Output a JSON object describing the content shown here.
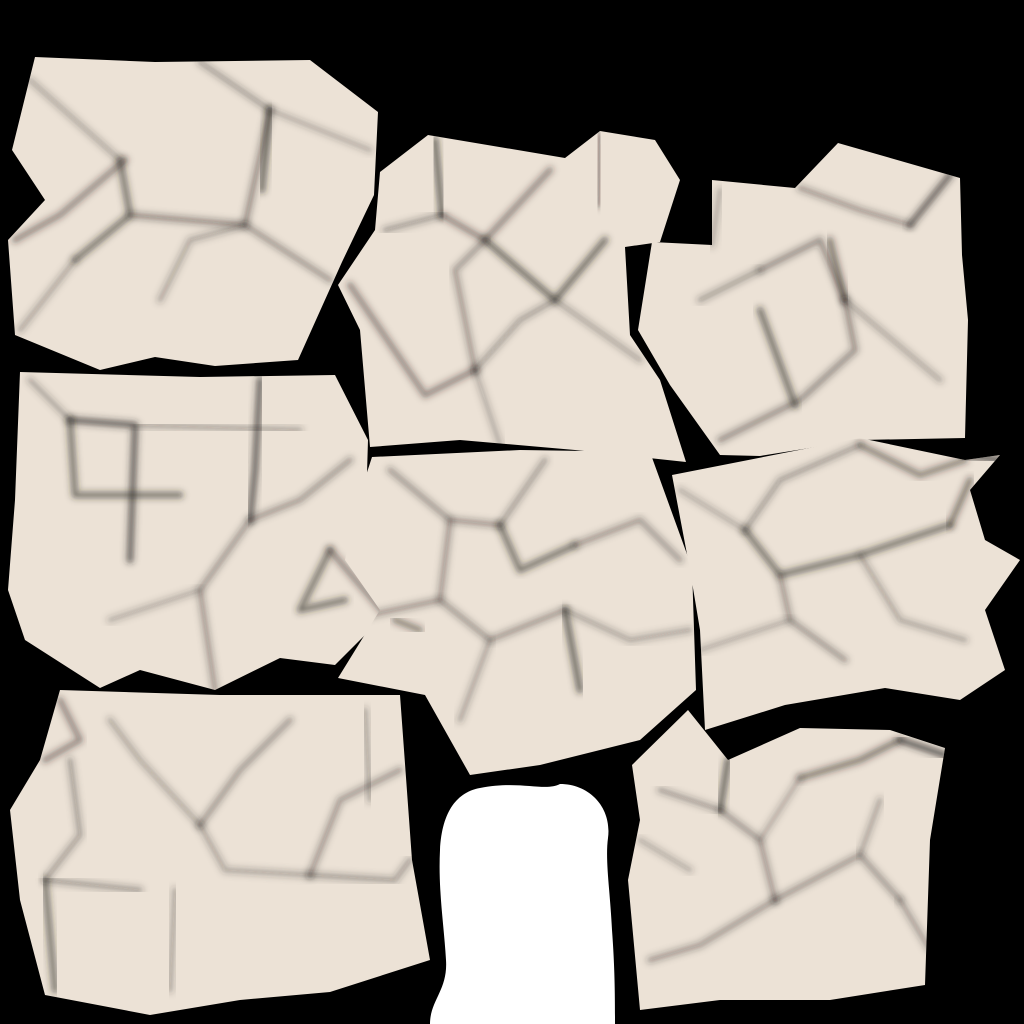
{
  "texture_atlas": {
    "background_color": "#000000",
    "tile_color": "#ECE2D6",
    "crease_color": "#2A2622",
    "blob_color": "#FFFFFF",
    "tile_count": 8
  }
}
